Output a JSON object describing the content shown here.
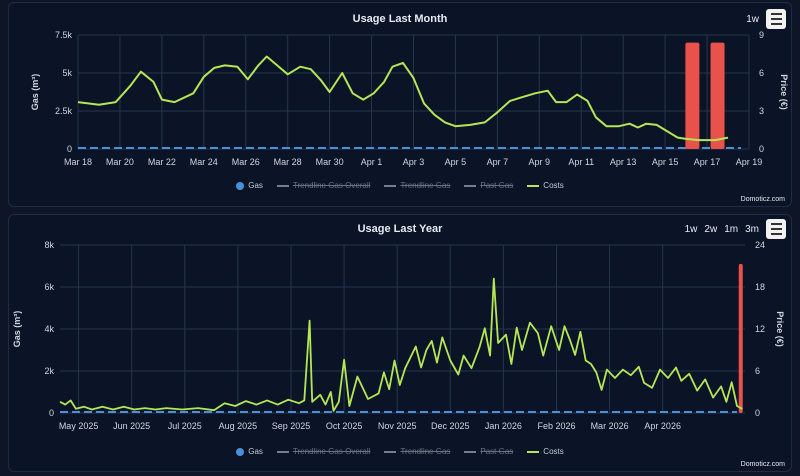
{
  "colors": {
    "gas": "#4a90d9",
    "costs": "#b5e655",
    "trend": "#777e88",
    "bars": "#e8524a",
    "grid": "#26354d",
    "text": "#d0d6df"
  },
  "chart_data": [
    {
      "type": "line",
      "title": "Usage Last Month",
      "zoom_buttons": [
        "1w"
      ],
      "credit": "Domoticz.com",
      "ylabel_left": "Gas (m³)",
      "ylabel_right": "Price (€)",
      "y_left_ticks": [
        "0",
        "2.5k",
        "5k",
        "7.5k"
      ],
      "y_left_range": [
        0,
        7500
      ],
      "y_right_ticks": [
        "0",
        "3",
        "6",
        "9"
      ],
      "y_right_range": [
        0,
        9
      ],
      "x_ticks": [
        "Mar 18",
        "Mar 20",
        "Mar 22",
        "Mar 24",
        "Mar 26",
        "Mar 28",
        "Mar 30",
        "Apr 1",
        "Apr 3",
        "Apr 5",
        "Apr 7",
        "Apr 9",
        "Apr 11",
        "Apr 13",
        "Apr 15",
        "Apr 17",
        "Apr 19"
      ],
      "x_range": [
        0,
        32
      ],
      "legend": [
        {
          "name": "Gas",
          "kind": "dot",
          "color": "#4a90d9",
          "hidden": false
        },
        {
          "name": "Trendline Gas Overall",
          "kind": "line",
          "color": "#777e88",
          "hidden": true
        },
        {
          "name": "Trendline Gas",
          "kind": "line",
          "color": "#777e88",
          "hidden": true
        },
        {
          "name": "Past Gas",
          "kind": "line",
          "color": "#777e88",
          "hidden": true
        },
        {
          "name": "Costs",
          "kind": "line",
          "color": "#b5e655",
          "hidden": false
        }
      ],
      "gas_bars": [
        {
          "day": 29.3,
          "value": 7000
        },
        {
          "day": 30.5,
          "value": 7000
        }
      ],
      "gas_flat": 0,
      "costs": [
        [
          0,
          3.7
        ],
        [
          1,
          3.5
        ],
        [
          1.8,
          3.7
        ],
        [
          2.5,
          5.0
        ],
        [
          3,
          6.1
        ],
        [
          3.6,
          5.3
        ],
        [
          4,
          3.9
        ],
        [
          4.6,
          3.7
        ],
        [
          5.5,
          4.4
        ],
        [
          6,
          5.7
        ],
        [
          6.5,
          6.4
        ],
        [
          7,
          6.6
        ],
        [
          7.6,
          6.5
        ],
        [
          8.1,
          5.5
        ],
        [
          8.6,
          6.6
        ],
        [
          9,
          7.3
        ],
        [
          9.5,
          6.6
        ],
        [
          10,
          5.9
        ],
        [
          10.6,
          6.5
        ],
        [
          11.1,
          6.3
        ],
        [
          11.6,
          5.4
        ],
        [
          12,
          4.5
        ],
        [
          12.6,
          6.0
        ],
        [
          13.1,
          4.4
        ],
        [
          13.6,
          3.9
        ],
        [
          14.1,
          4.4
        ],
        [
          14.6,
          5.3
        ],
        [
          15,
          6.5
        ],
        [
          15.5,
          6.8
        ],
        [
          16,
          5.6
        ],
        [
          16.5,
          3.6
        ],
        [
          17,
          2.7
        ],
        [
          17.5,
          2.1
        ],
        [
          18,
          1.8
        ],
        [
          18.7,
          1.9
        ],
        [
          19.4,
          2.1
        ],
        [
          20,
          2.9
        ],
        [
          20.6,
          3.8
        ],
        [
          21.2,
          4.1
        ],
        [
          21.8,
          4.4
        ],
        [
          22.4,
          4.6
        ],
        [
          22.8,
          3.7
        ],
        [
          23.3,
          3.7
        ],
        [
          23.8,
          4.3
        ],
        [
          24.3,
          3.8
        ],
        [
          24.7,
          2.5
        ],
        [
          25.2,
          1.8
        ],
        [
          25.8,
          1.8
        ],
        [
          26.3,
          2.0
        ],
        [
          26.7,
          1.7
        ],
        [
          27.1,
          2.0
        ],
        [
          27.6,
          1.9
        ],
        [
          28,
          1.5
        ],
        [
          28.6,
          0.9
        ],
        [
          29,
          0.8
        ],
        [
          29.6,
          0.7
        ],
        [
          30.4,
          0.7
        ],
        [
          31,
          0.9
        ]
      ]
    },
    {
      "type": "line",
      "title": "Usage Last Year",
      "zoom_buttons": [
        "1w",
        "2w",
        "1m",
        "3m"
      ],
      "credit": "Domoticz.com",
      "ylabel_left": "Gas (m³)",
      "ylabel_right": "Price (€)",
      "y_left_ticks": [
        "0",
        "2k",
        "4k",
        "6k",
        "8k"
      ],
      "y_left_range": [
        0,
        8000
      ],
      "y_right_ticks": [
        "0",
        "6",
        "12",
        "18",
        "24"
      ],
      "y_right_range": [
        0,
        24
      ],
      "x_ticks": [
        "May 2025",
        "Jun 2025",
        "Jul 2025",
        "Aug 2025",
        "Sep 2025",
        "Oct 2025",
        "Nov 2025",
        "Dec 2025",
        "Jan 2026",
        "Feb 2026",
        "Mar 2026",
        "Apr 2026"
      ],
      "x_range": [
        0,
        12.9
      ],
      "legend": [
        {
          "name": "Gas",
          "kind": "dot",
          "color": "#4a90d9",
          "hidden": false
        },
        {
          "name": "Trendline Gas Overall",
          "kind": "line",
          "color": "#777e88",
          "hidden": true
        },
        {
          "name": "Trendline Gas",
          "kind": "line",
          "color": "#777e88",
          "hidden": true
        },
        {
          "name": "Past Gas",
          "kind": "line",
          "color": "#777e88",
          "hidden": true
        },
        {
          "name": "Costs",
          "kind": "line",
          "color": "#b5e655",
          "hidden": false
        }
      ],
      "gas_bars": [
        {
          "month": 12.82,
          "value": 7100
        }
      ],
      "costs": [
        [
          0,
          1.6
        ],
        [
          0.1,
          1.2
        ],
        [
          0.2,
          1.8
        ],
        [
          0.3,
          0.6
        ],
        [
          0.45,
          0.9
        ],
        [
          0.6,
          0.5
        ],
        [
          0.8,
          0.9
        ],
        [
          1,
          0.5
        ],
        [
          1.2,
          0.9
        ],
        [
          1.4,
          0.5
        ],
        [
          1.6,
          0.7
        ],
        [
          1.8,
          0.5
        ],
        [
          2,
          0.7
        ],
        [
          2.3,
          0.5
        ],
        [
          2.6,
          0.7
        ],
        [
          2.9,
          0.4
        ],
        [
          3.1,
          1.4
        ],
        [
          3.3,
          1.0
        ],
        [
          3.5,
          1.7
        ],
        [
          3.7,
          1.2
        ],
        [
          3.9,
          1.8
        ],
        [
          4.1,
          1.2
        ],
        [
          4.3,
          1.9
        ],
        [
          4.5,
          1.4
        ],
        [
          4.6,
          1.8
        ],
        [
          4.7,
          13.2
        ],
        [
          4.75,
          1.6
        ],
        [
          4.9,
          2.6
        ],
        [
          5,
          1.2
        ],
        [
          5.1,
          3.0
        ],
        [
          5.15,
          0.3
        ],
        [
          5.25,
          1.6
        ],
        [
          5.35,
          7.6
        ],
        [
          5.45,
          1.0
        ],
        [
          5.6,
          5.2
        ],
        [
          5.8,
          2.0
        ],
        [
          6,
          2.8
        ],
        [
          6.1,
          5.8
        ],
        [
          6.2,
          3.4
        ],
        [
          6.3,
          7.5
        ],
        [
          6.4,
          4.0
        ],
        [
          6.5,
          6.4
        ],
        [
          6.7,
          9.5
        ],
        [
          6.8,
          6.5
        ],
        [
          6.9,
          9.0
        ],
        [
          7,
          10.3
        ],
        [
          7.1,
          7.2
        ],
        [
          7.2,
          10.8
        ],
        [
          7.35,
          7.5
        ],
        [
          7.5,
          5.5
        ],
        [
          7.6,
          8.2
        ],
        [
          7.75,
          6.4
        ],
        [
          7.9,
          9.4
        ],
        [
          8,
          12.1
        ],
        [
          8.1,
          8.2
        ],
        [
          8.17,
          19.2
        ],
        [
          8.25,
          10.0
        ],
        [
          8.4,
          11.2
        ],
        [
          8.5,
          7.0
        ],
        [
          8.6,
          12.2
        ],
        [
          8.7,
          9.0
        ],
        [
          8.85,
          12.9
        ],
        [
          9,
          11.4
        ],
        [
          9.1,
          8.2
        ],
        [
          9.25,
          12.4
        ],
        [
          9.4,
          9.0
        ],
        [
          9.5,
          12.4
        ],
        [
          9.6,
          10.5
        ],
        [
          9.7,
          8.3
        ],
        [
          9.8,
          11.6
        ],
        [
          9.9,
          7.5
        ],
        [
          10,
          7.0
        ],
        [
          10.1,
          5.8
        ],
        [
          10.2,
          3.3
        ],
        [
          10.3,
          6.2
        ],
        [
          10.45,
          5.0
        ],
        [
          10.6,
          6.2
        ],
        [
          10.75,
          5.4
        ],
        [
          10.9,
          6.6
        ],
        [
          11,
          4.3
        ],
        [
          11.15,
          3.6
        ],
        [
          11.3,
          6.2
        ],
        [
          11.45,
          5.0
        ],
        [
          11.6,
          6.5
        ],
        [
          11.7,
          4.6
        ],
        [
          11.85,
          5.6
        ],
        [
          12,
          3.2
        ],
        [
          12.15,
          4.8
        ],
        [
          12.3,
          2.2
        ],
        [
          12.45,
          3.8
        ],
        [
          12.55,
          1.6
        ],
        [
          12.65,
          4.4
        ],
        [
          12.75,
          1.0
        ],
        [
          12.85,
          0.6
        ]
      ]
    }
  ]
}
